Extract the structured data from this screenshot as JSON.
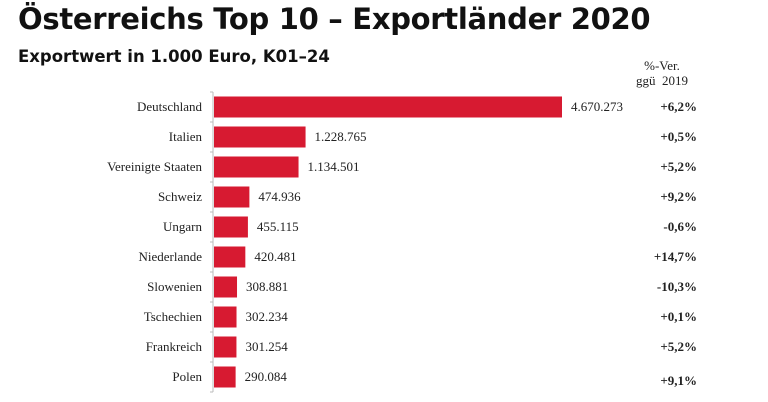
{
  "chart_data": {
    "type": "bar",
    "orientation": "horizontal",
    "title": "Österreichs Top 10 – Exportländer 2020",
    "subtitle": "Exportwert in 1.000 Euro, K01–24",
    "change_header": [
      "%-Ver.",
      "ggü  2019"
    ],
    "categories": [
      "Deutschland",
      "Italien",
      "Vereinigte Staaten",
      "Schweiz",
      "Ungarn",
      "Niederlande",
      "Slowenien",
      "Tschechien",
      "Frankreich",
      "Polen"
    ],
    "values": [
      4670273,
      1228765,
      1134501,
      474936,
      455115,
      420481,
      308881,
      302234,
      301254,
      290084
    ],
    "value_labels": [
      "4.670.273",
      "1.228.765",
      "1.134.501",
      "474.936",
      "455.115",
      "420.481",
      "308.881",
      "302.234",
      "301.254",
      "290.084"
    ],
    "change_labels": [
      "+6,2%",
      "+0,5%",
      "+5,2%",
      "+9,2%",
      "-0,6%",
      "+14,7%",
      "-10,3%",
      "+0,1%",
      "+5,2%",
      "+9,1%"
    ],
    "bar_color": "#d71a31",
    "xlim": [
      0,
      4670273
    ]
  }
}
